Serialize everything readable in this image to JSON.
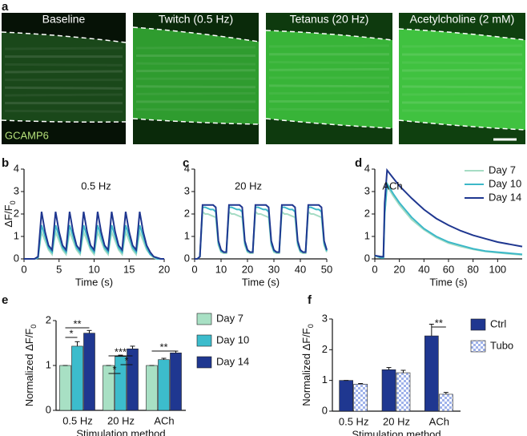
{
  "panel_a": {
    "letter": "a",
    "titles": [
      "Baseline",
      "Twitch (0.5 Hz)",
      "Tetanus (20 Hz)",
      "Acetylcholine (2 mM)"
    ],
    "stain": "GCAMP6"
  },
  "chart_data": [
    {
      "type": "line",
      "letter": "b",
      "annotation": "0.5 Hz",
      "xlabel": "Time (s)",
      "ylabel": "ΔF/F",
      "ylabel_sub": "0",
      "x": [
        0,
        0.5,
        1,
        1.5,
        2,
        2.5,
        3,
        3.5,
        4,
        4.5,
        5,
        5.5,
        6,
        6.5,
        7,
        7.5,
        8,
        8.5,
        9,
        9.5,
        10,
        10.5,
        11,
        11.5,
        12,
        12.5,
        13,
        13.5,
        14,
        14.5,
        15,
        15.5,
        16,
        16.5,
        17,
        17.5,
        18,
        18.5,
        19,
        19.5,
        20
      ],
      "xlim": [
        0,
        20
      ],
      "xticks": [
        0,
        5,
        10,
        15,
        20
      ],
      "ylim": [
        0,
        4
      ],
      "yticks": [
        0,
        1,
        2,
        3,
        4
      ],
      "series": [
        {
          "color": "#a6dcc4",
          "values": [
            0,
            0,
            0,
            0,
            0.05,
            1.2,
            0.8,
            0.4,
            0.2,
            1.2,
            0.8,
            0.4,
            0.2,
            1.2,
            0.8,
            0.4,
            0.2,
            1.2,
            0.8,
            0.4,
            0.2,
            1.2,
            0.8,
            0.4,
            0.2,
            1.2,
            0.8,
            0.4,
            0.2,
            1.2,
            0.8,
            0.4,
            0.2,
            1.2,
            0.8,
            0.4,
            0.2,
            0.05,
            0,
            0,
            0
          ]
        },
        {
          "color": "#3cb8c8",
          "values": [
            0,
            0,
            0,
            0,
            0.05,
            1.5,
            1.0,
            0.5,
            0.3,
            1.5,
            1.0,
            0.5,
            0.3,
            1.5,
            1.0,
            0.5,
            0.3,
            1.5,
            1.0,
            0.5,
            0.3,
            1.5,
            1.0,
            0.5,
            0.3,
            1.5,
            1.0,
            0.5,
            0.3,
            1.5,
            1.0,
            0.5,
            0.3,
            1.5,
            1.0,
            0.5,
            0.2,
            0.1,
            0,
            0,
            0
          ]
        },
        {
          "color": "#1f3790",
          "values": [
            0,
            0,
            0,
            0,
            0.1,
            2.1,
            1.2,
            0.6,
            0.4,
            2.1,
            1.2,
            0.6,
            0.4,
            2.1,
            1.2,
            0.6,
            0.4,
            2.1,
            1.2,
            0.6,
            0.4,
            2.1,
            1.2,
            0.6,
            0.4,
            2.1,
            1.2,
            0.6,
            0.4,
            2.1,
            1.2,
            0.6,
            0.4,
            2.1,
            1.2,
            0.6,
            0.3,
            0.1,
            0.05,
            0,
            0
          ]
        }
      ]
    },
    {
      "type": "line",
      "letter": "c",
      "annotation": "20 Hz",
      "xlabel": "Time (s)",
      "x": [
        0,
        1,
        2,
        3,
        4,
        5,
        6,
        7,
        8,
        9,
        10,
        11,
        12,
        13,
        14,
        15,
        16,
        17,
        18,
        19,
        20,
        21,
        22,
        23,
        24,
        25,
        26,
        27,
        28,
        29,
        30,
        31,
        32,
        33,
        34,
        35,
        36,
        37,
        38,
        39,
        40,
        41,
        42,
        43,
        44,
        45,
        46,
        47,
        48,
        49,
        50
      ],
      "xlim": [
        0,
        50
      ],
      "xticks": [
        0,
        10,
        20,
        30,
        40,
        50
      ],
      "ylim": [
        0,
        4
      ],
      "yticks": [
        0,
        1,
        2,
        3,
        4
      ],
      "series": [
        {
          "color": "#a6dcc4",
          "values": [
            0,
            0,
            0.1,
            2.1,
            2.0,
            2.0,
            1.95,
            1.9,
            1.85,
            0.6,
            0.3,
            0.25,
            0.25,
            2.1,
            2.0,
            2.0,
            1.95,
            1.9,
            1.85,
            0.6,
            0.3,
            0.25,
            0.25,
            2.1,
            2.0,
            2.0,
            1.95,
            1.9,
            1.85,
            0.6,
            0.3,
            0.25,
            0.25,
            2.1,
            2.0,
            2.0,
            1.95,
            1.9,
            1.85,
            0.6,
            0.3,
            0.25,
            0.25,
            2.1,
            2.0,
            2.0,
            1.95,
            1.9,
            1.85,
            0.6,
            0.3
          ]
        },
        {
          "color": "#3cb8c8",
          "values": [
            0,
            0,
            0.1,
            2.3,
            2.3,
            2.25,
            2.2,
            2.2,
            2.1,
            0.7,
            0.35,
            0.3,
            0.3,
            2.3,
            2.3,
            2.25,
            2.2,
            2.2,
            2.1,
            0.7,
            0.35,
            0.3,
            0.3,
            2.3,
            2.3,
            2.25,
            2.2,
            2.2,
            2.1,
            0.7,
            0.35,
            0.3,
            0.3,
            2.3,
            2.3,
            2.25,
            2.2,
            2.2,
            2.1,
            0.7,
            0.35,
            0.3,
            0.3,
            2.3,
            2.3,
            2.25,
            2.2,
            2.2,
            2.1,
            0.7,
            0.35
          ]
        },
        {
          "color": "#1f3790",
          "values": [
            0,
            0,
            0.1,
            2.4,
            2.4,
            2.4,
            2.4,
            2.4,
            2.3,
            0.8,
            0.4,
            0.3,
            0.3,
            2.4,
            2.4,
            2.4,
            2.4,
            2.4,
            2.3,
            0.8,
            0.4,
            0.3,
            0.3,
            2.4,
            2.4,
            2.4,
            2.4,
            2.4,
            2.3,
            0.8,
            0.4,
            0.3,
            0.3,
            2.4,
            2.4,
            2.4,
            2.4,
            2.4,
            2.3,
            0.8,
            0.4,
            0.3,
            0.3,
            2.4,
            2.4,
            2.4,
            2.4,
            2.4,
            2.3,
            0.8,
            0.4
          ]
        }
      ]
    },
    {
      "type": "line",
      "letter": "d",
      "annotation": "ACh",
      "xlabel": "Time (s)",
      "x": [
        0,
        5,
        7,
        8,
        10,
        15,
        20,
        30,
        40,
        50,
        60,
        70,
        80,
        90,
        100,
        110,
        120
      ],
      "xlim": [
        0,
        120
      ],
      "xticks": [
        0,
        20,
        40,
        60,
        80,
        100
      ],
      "ylim": [
        0,
        4
      ],
      "yticks": [
        0,
        1,
        2,
        3,
        4
      ],
      "legend": "upper right",
      "series": [
        {
          "name": "Day 7",
          "color": "#a6dcc4",
          "values": [
            0.15,
            0.05,
            0.05,
            2.0,
            3.25,
            2.8,
            2.4,
            1.75,
            1.3,
            0.95,
            0.7,
            0.55,
            0.42,
            0.33,
            0.27,
            0.22,
            0.18
          ]
        },
        {
          "name": "Day 10",
          "color": "#3cb8c8",
          "values": [
            0.15,
            0.05,
            0.05,
            2.0,
            3.35,
            2.9,
            2.5,
            1.85,
            1.35,
            1.0,
            0.75,
            0.6,
            0.45,
            0.35,
            0.3,
            0.25,
            0.2
          ]
        },
        {
          "name": "Day 14",
          "color": "#1f3790",
          "values": [
            0.15,
            0.1,
            0.1,
            2.5,
            3.95,
            3.6,
            3.25,
            2.7,
            2.2,
            1.8,
            1.5,
            1.25,
            1.05,
            0.9,
            0.75,
            0.65,
            0.55
          ]
        }
      ]
    },
    {
      "type": "bar",
      "letter": "e",
      "categories": [
        "0.5 Hz",
        "20 Hz",
        "ACh"
      ],
      "xlabel": "Stimulation method",
      "ylabel": "Normalized ΔF/F",
      "ylabel_sub": "0",
      "ylim": [
        0,
        2
      ],
      "yticks": [
        0,
        1,
        2
      ],
      "legend": "right",
      "series": [
        {
          "name": "Day 7",
          "color": "#a8e0c4",
          "values": [
            1,
            1,
            1
          ],
          "errors": [
            0,
            0,
            0
          ]
        },
        {
          "name": "Day 10",
          "color": "#3cbccc",
          "values": [
            1.43,
            1.2,
            1.13
          ],
          "errors": [
            0.1,
            0.03,
            0.03
          ]
        },
        {
          "name": "Day 14",
          "color": "#1f3790",
          "values": [
            1.72,
            1.37,
            1.28
          ],
          "errors": [
            0.06,
            0.06,
            0.04
          ]
        }
      ],
      "significance": [
        "*",
        "**",
        "*",
        "***",
        "*",
        "**"
      ]
    },
    {
      "type": "bar",
      "letter": "f",
      "categories": [
        "0.5 Hz",
        "20 Hz",
        "ACh"
      ],
      "xlabel": "Stimulation method",
      "ylabel": "Normalized ΔF/F",
      "ylabel_sub": "0",
      "ylim": [
        0,
        3
      ],
      "yticks": [
        0,
        1,
        2,
        3
      ],
      "legend": "right",
      "series": [
        {
          "name": "Ctrl",
          "color": "#1f3790",
          "values": [
            1,
            1.35,
            2.45
          ],
          "errors": [
            0,
            0.07,
            0.38
          ]
        },
        {
          "name": "Tubo",
          "color": "#9fb2ea",
          "pattern": "checker",
          "values": [
            0.88,
            1.25,
            0.55
          ],
          "errors": [
            0.02,
            0.08,
            0.06
          ]
        }
      ],
      "significance": [
        "**"
      ]
    }
  ]
}
